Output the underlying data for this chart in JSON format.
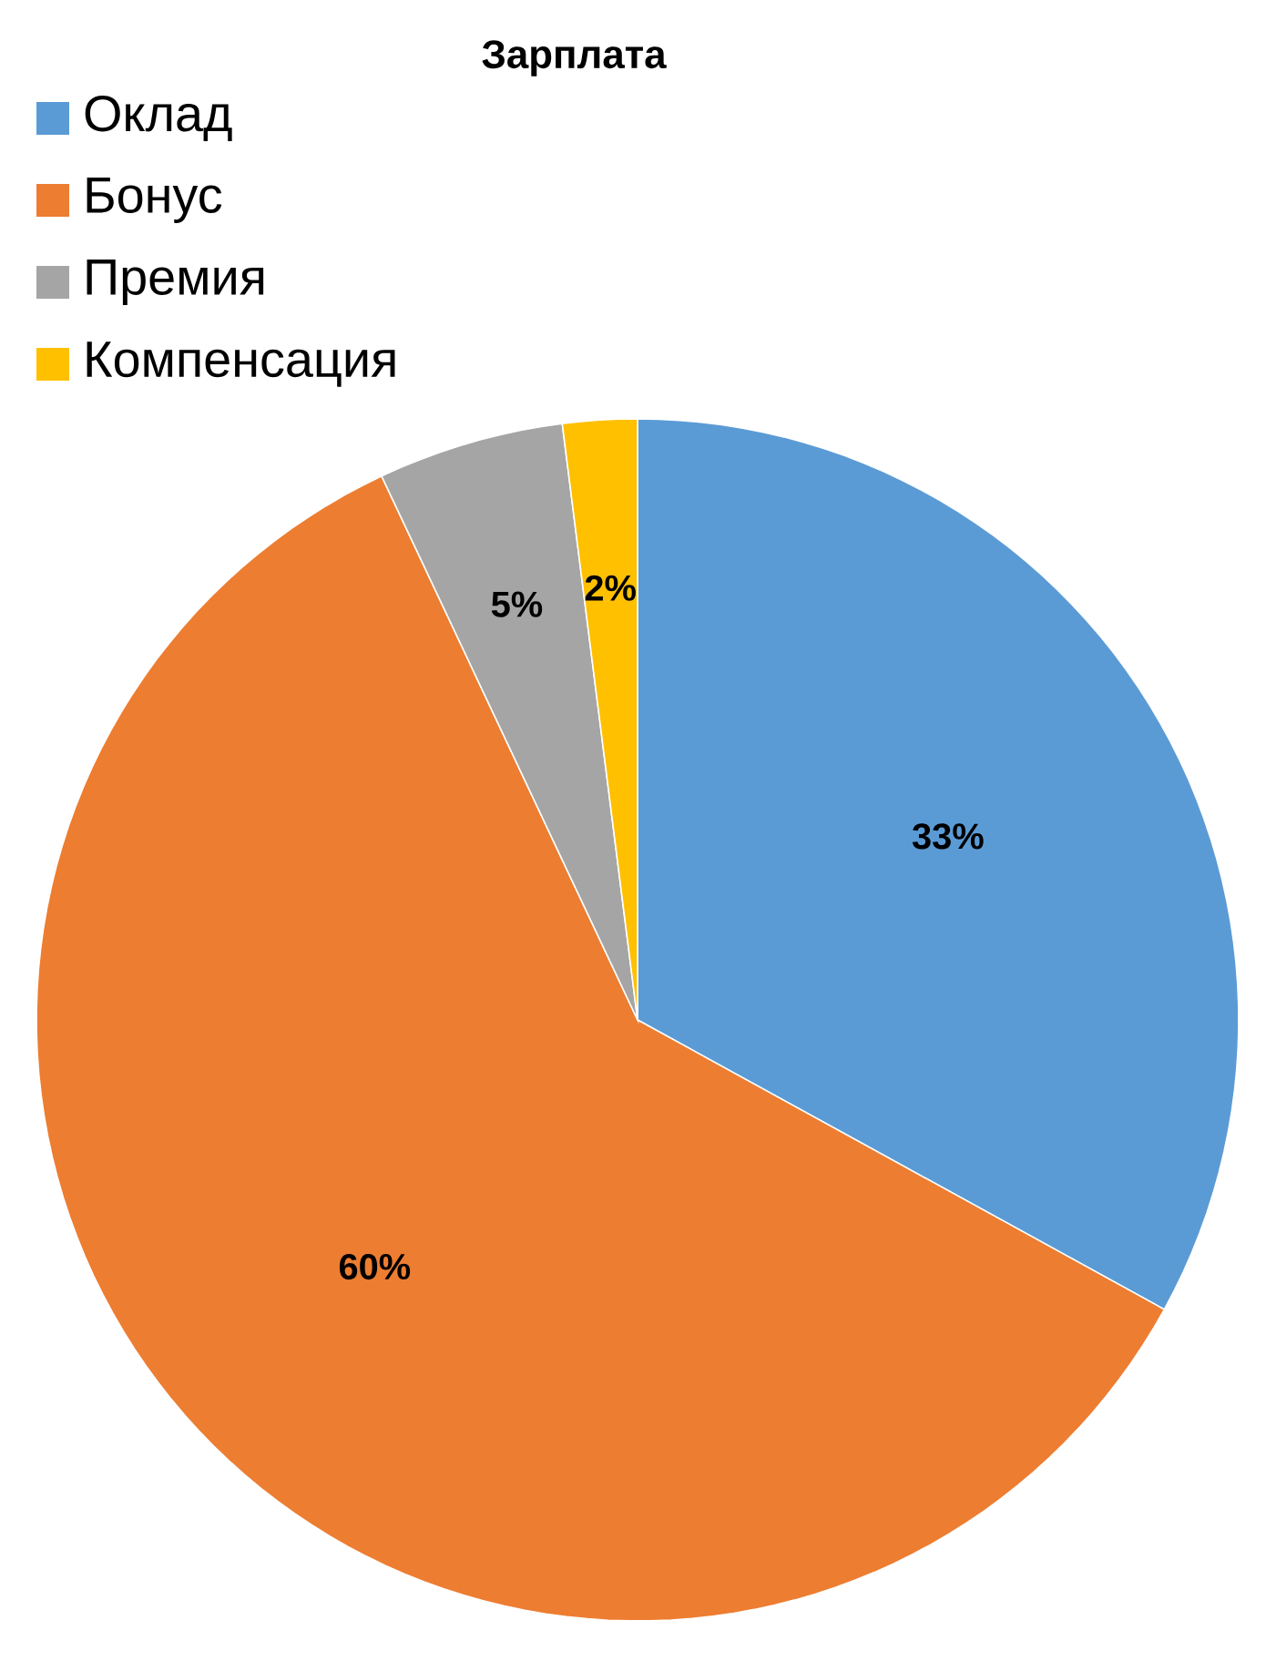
{
  "chart_data": {
    "type": "pie",
    "title": "Зарплата",
    "categories": [
      "Оклад",
      "Бонус",
      "Премия",
      "Компенсация"
    ],
    "values": [
      33,
      60,
      5,
      2
    ],
    "value_labels": [
      "33%",
      "60%",
      "5%",
      "2%"
    ],
    "colors": [
      "#5b9bd5",
      "#ed7d31",
      "#a5a5a5",
      "#ffc000"
    ],
    "legend": "top left"
  }
}
